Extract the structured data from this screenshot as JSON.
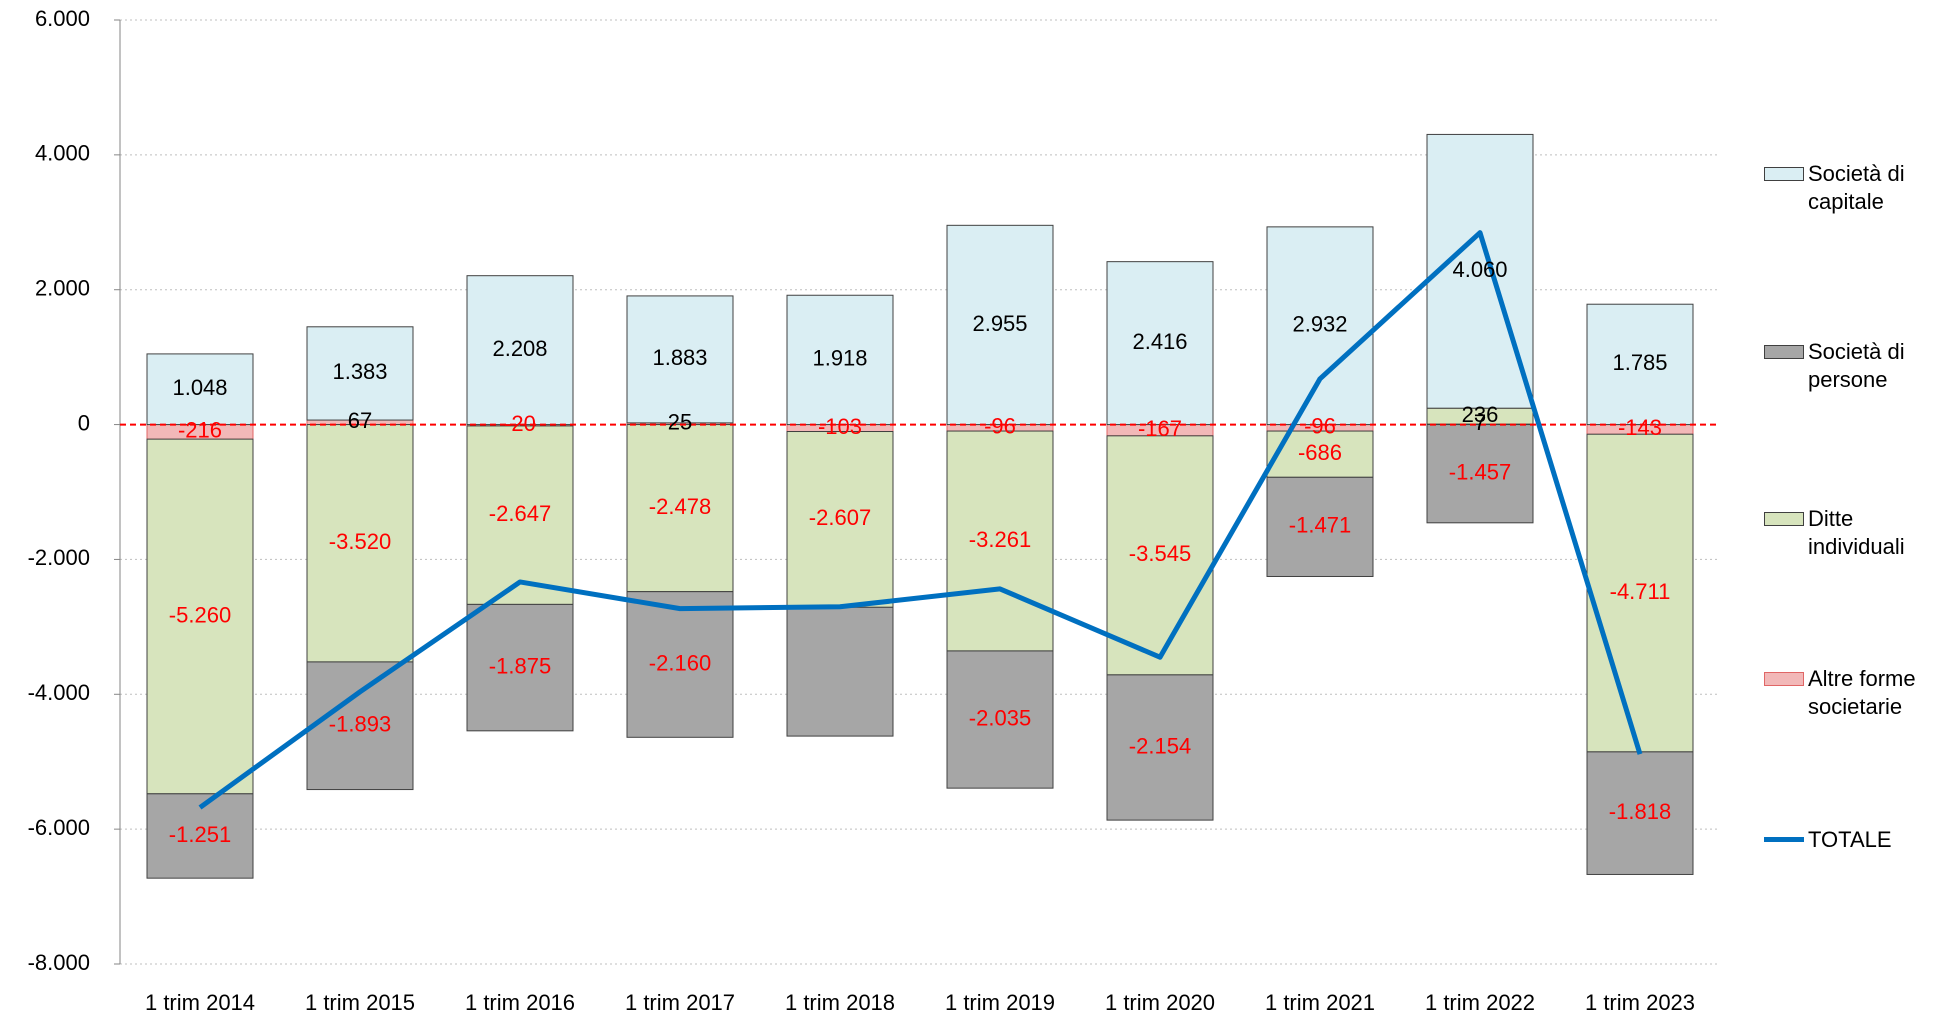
{
  "chart_data": {
    "type": "bar",
    "categories": [
      "1 trim 2014",
      "1 trim 2015",
      "1 trim 2016",
      "1 trim 2017",
      "1 trim 2018",
      "1 trim 2019",
      "1 trim 2020",
      "1 trim 2021",
      "1 trim 2022",
      "1 trim 2023"
    ],
    "series": [
      {
        "name": "Società di capitale",
        "color": "#daeef3",
        "values": [
          1048,
          1383,
          2208,
          1883,
          1918,
          2955,
          2416,
          2932,
          4060,
          1785
        ],
        "value_labels": [
          "1.048",
          "1.383",
          "2.208",
          "1.883",
          "1.918",
          "2.955",
          "2.416",
          "2.932",
          "4.060",
          "1.785"
        ]
      },
      {
        "name": "Società di persone",
        "color": "#a6a6a6",
        "values": [
          -1251,
          -1893,
          -1875,
          -2160,
          -1910,
          -2035,
          -2154,
          -1471,
          -1457,
          -1818
        ],
        "value_labels": [
          "-1.251",
          "-1.893",
          "-1.875",
          "-2.160",
          null,
          "-2.035",
          "-2.154",
          "-1.471",
          "-1.457",
          "-1.818"
        ]
      },
      {
        "name": "Ditte individuali",
        "color": "#d7e4bd",
        "values": [
          -5260,
          -3520,
          -2647,
          -2478,
          -2607,
          -3261,
          -3545,
          -686,
          236,
          -4711
        ],
        "value_labels": [
          "-5.260",
          "-3.520",
          "-2.647",
          "-2.478",
          "-2.607",
          "-3.261",
          "-3.545",
          "-686",
          "236",
          "-4.711"
        ]
      },
      {
        "name": "Altre forme societarie",
        "color": "#f2b8b8",
        "values": [
          -216,
          67,
          -20,
          25,
          -103,
          -96,
          -167,
          -96,
          7,
          -143
        ]
      },
      {
        "name": "TOTALE",
        "color": "#0070c0",
        "type": "line",
        "values": [
          -5679,
          -3963,
          -2334,
          -2730,
          -2702,
          -2437,
          -3450,
          679,
          2846,
          -4887
        ]
      }
    ],
    "ylim": [
      -8000,
      6000
    ],
    "yticks": [
      {
        "value": -8000,
        "label": "-8.000"
      },
      {
        "value": -6000,
        "label": "-6.000"
      },
      {
        "value": -4000,
        "label": "-4.000"
      },
      {
        "value": -2000,
        "label": "-2.000"
      },
      0,
      {
        "value": 2000,
        "label": "2.000"
      },
      {
        "value": 4000,
        "label": "4.000"
      },
      {
        "value": 6000,
        "label": "6.000"
      }
    ],
    "grid": true
  }
}
